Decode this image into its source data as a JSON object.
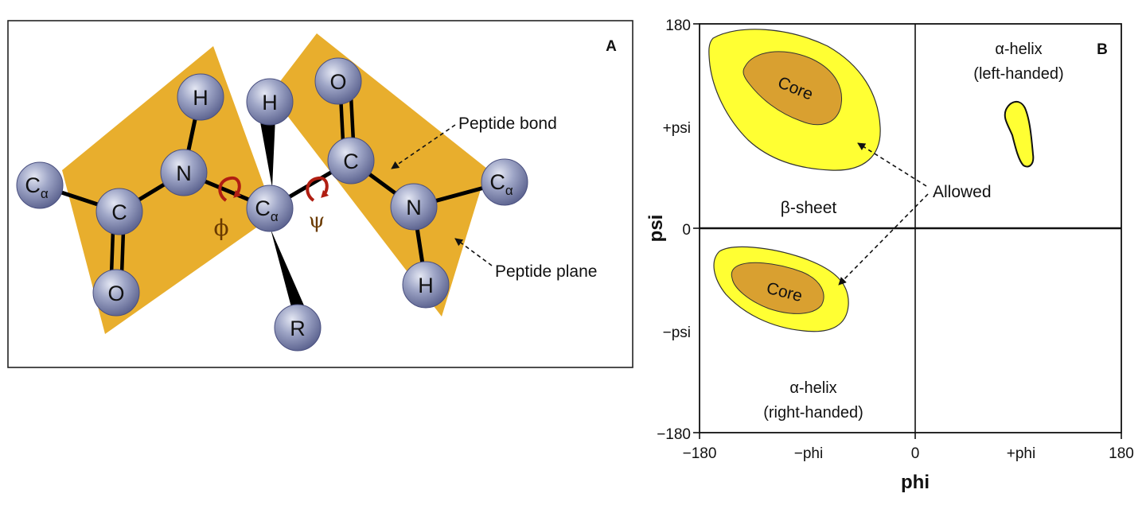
{
  "panel_a": {
    "label": "A",
    "atoms": {
      "ca_left": "C",
      "ca_left_sub": "α",
      "c_left": "C",
      "o_left": "O",
      "n_left": "N",
      "h_left": "H",
      "ca_center": "C",
      "ca_center_sub": "α",
      "h_center": "H",
      "r_center": "R",
      "c_right": "C",
      "o_right": "O",
      "n_right": "N",
      "h_right": "H",
      "ca_right": "C",
      "ca_right_sub": "α"
    },
    "phi_symbol": "ϕ",
    "psi_symbol": "ψ",
    "annotations": {
      "peptide_bond": "Peptide bond",
      "peptide_plane": "Peptide plane"
    },
    "colors": {
      "plane": "#E8AE2D",
      "atom": "#8F96B8",
      "rotation_arrow": "#B01E12"
    }
  },
  "panel_b": {
    "label": "B",
    "x_axis_title": "phi",
    "y_axis_title": "psi",
    "x_ticks": {
      "min": "−180",
      "neg": "−phi",
      "zero": "0",
      "pos": "+phi",
      "max": "180"
    },
    "y_ticks": {
      "max": "180",
      "pos": "+psi",
      "zero": "0",
      "neg": "−psi",
      "min": "−180"
    },
    "regions": {
      "beta_sheet": "β-sheet",
      "alpha_left_line1": "α-helix",
      "alpha_left_line2": "(left-handed)",
      "alpha_right_line1": "α-helix",
      "alpha_right_line2": "(right-handed)",
      "core_top": "Core",
      "core_bottom": "Core",
      "allowed": "Allowed"
    },
    "colors": {
      "allowed": "#FFFF33",
      "core": "#D9A030"
    }
  }
}
